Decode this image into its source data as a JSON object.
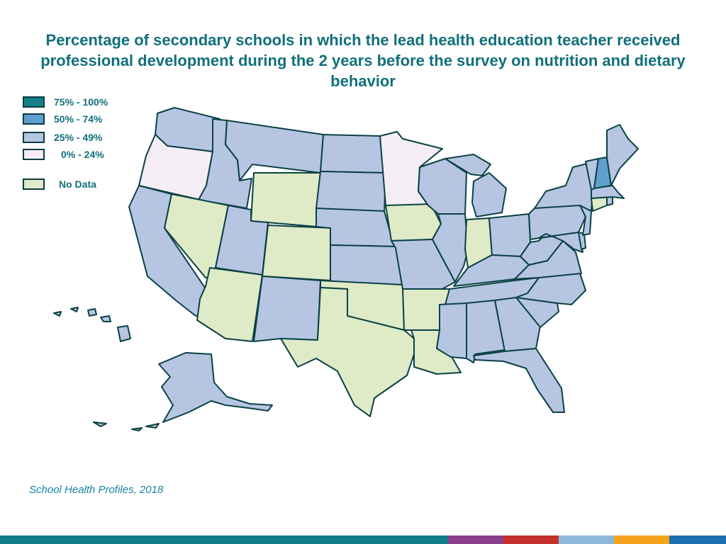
{
  "title": "Percentage of secondary schools in which the lead health education teacher received professional development during the 2 years before the survey on nutrition and dietary behavior",
  "source": "School Health Profiles, 2018",
  "colors": {
    "p75_100": "#147f87",
    "p50_74": "#5e9fcd",
    "p25_49": "#b6c6e2",
    "p0_24": "#f5edf6",
    "no_data": "#deebc6",
    "border": "#0b4145",
    "title": "#11707a"
  },
  "legend": [
    {
      "key": "p75_100",
      "label": "75% - 100%"
    },
    {
      "key": "p50_74",
      "label": "50% - 74%"
    },
    {
      "key": "p25_49",
      "label": "25% - 49%"
    },
    {
      "key": "p0_24",
      "label": "0% - 24%"
    },
    {
      "key": "no_data",
      "label": "No Data"
    }
  ],
  "states": {
    "WA": "p25_49",
    "OR": "p0_24",
    "CA": "p25_49",
    "ID": "p25_49",
    "NV": "no_data",
    "MT": "p25_49",
    "WY": "no_data",
    "UT": "p25_49",
    "AZ": "no_data",
    "CO": "no_data",
    "NM": "p25_49",
    "ND": "p25_49",
    "SD": "p25_49",
    "NE": "p25_49",
    "KS": "p25_49",
    "OK": "no_data",
    "TX": "no_data",
    "MN": "p0_24",
    "IA": "no_data",
    "MO": "p25_49",
    "AR": "no_data",
    "LA": "no_data",
    "WI": "p25_49",
    "IL": "p25_49",
    "MI": "p25_49",
    "IN": "no_data",
    "OH": "p25_49",
    "KY": "p25_49",
    "TN": "p25_49",
    "MS": "p25_49",
    "AL": "p25_49",
    "GA": "p25_49",
    "FL": "p25_49",
    "SC": "p25_49",
    "NC": "p25_49",
    "VA": "p25_49",
    "WV": "p25_49",
    "MD": "p25_49",
    "DE": "p25_49",
    "NJ": "p25_49",
    "PA": "p25_49",
    "NY": "p25_49",
    "CT": "no_data",
    "RI": "p25_49",
    "MA": "p25_49",
    "VT": "p25_49",
    "NH": "p50_74",
    "ME": "p25_49",
    "AK": "p25_49",
    "HI": "p25_49"
  },
  "footer_colors": [
    "#0e7d86",
    "#8d3f8f",
    "#c4302b",
    "#8fb7d9",
    "#f4a41c",
    "#1f6fb4"
  ]
}
